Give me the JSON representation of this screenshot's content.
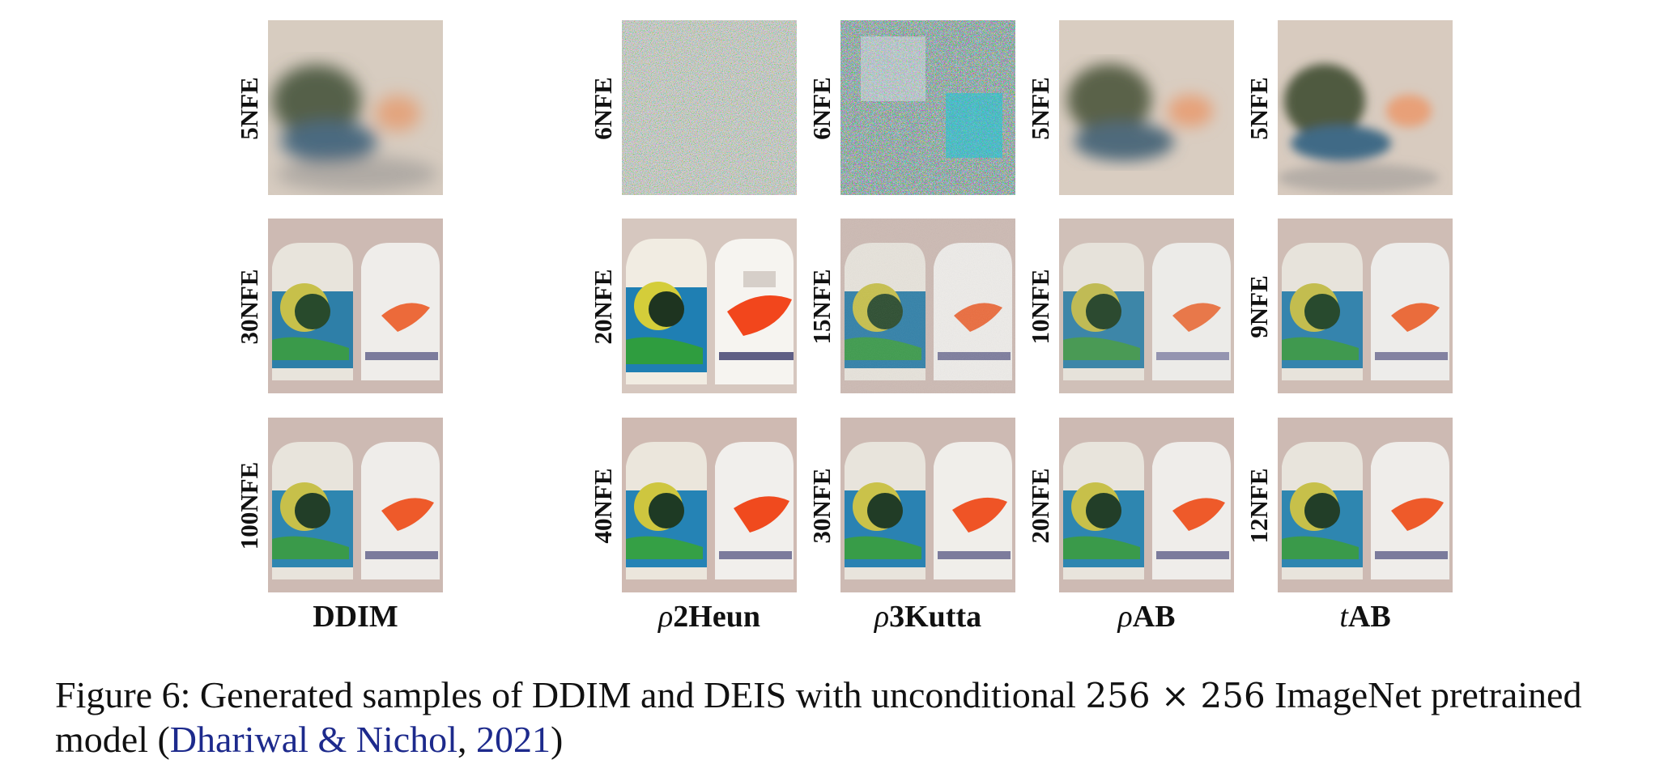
{
  "columns": [
    {
      "id": "ddim",
      "prefix": "",
      "label": "DDIM"
    },
    {
      "id": "r2heun",
      "prefix": "ρ",
      "label": "2Heun"
    },
    {
      "id": "r3kutta",
      "prefix": "ρ",
      "label": "3Kutta"
    },
    {
      "id": "rab",
      "prefix": "ρ",
      "label": "AB"
    },
    {
      "id": "tab",
      "prefix": "t",
      "label": "AB"
    }
  ],
  "nfe_labels": {
    "ddim": [
      "5NFE",
      "30NFE",
      "100NFE"
    ],
    "r2heun": [
      "6NFE",
      "20NFE",
      "40NFE"
    ],
    "r3kutta": [
      "6NFE",
      "15NFE",
      "30NFE"
    ],
    "rab": [
      "5NFE",
      "10NFE",
      "20NFE"
    ],
    "tab": [
      "5NFE",
      "9NFE",
      "12NFE"
    ]
  },
  "caption": {
    "label": "Figure 6:",
    "text_a": " Generated samples of DDIM and DEIS with unconditional ",
    "math": "256 × 256",
    "text_b": " ImageNet pretrained model (",
    "cite_author": "Dhariwal & Nichol",
    "sep": ", ",
    "cite_year": "2021",
    "end": ")"
  },
  "colors": {
    "link": "#1d2a8c"
  }
}
